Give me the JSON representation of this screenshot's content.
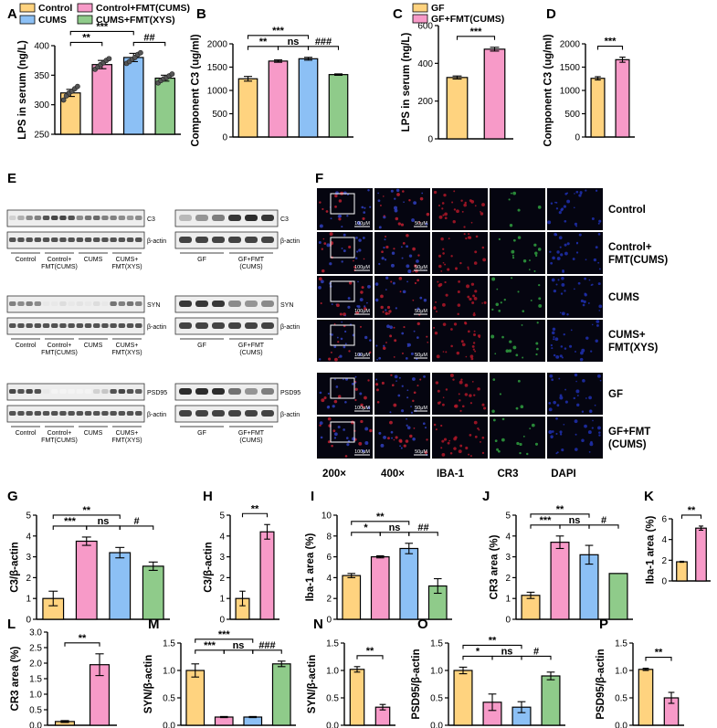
{
  "colors": {
    "control": "#FFD37F",
    "control_fmt": "#F79AC8",
    "cums": "#8CC0F5",
    "cums_fmt": "#8FCB8A"
  },
  "legend_A": [
    "Control",
    "Control+FMT(CUMS)",
    "CUMS",
    "CUMS+FMT(XYS)"
  ],
  "legend_C": [
    "GF",
    "GF+FMT(CUMS)"
  ],
  "chart_data": [
    {
      "id": "A",
      "type": "bar",
      "ylabel": "LPS in serum (ng/L)",
      "ylim": [
        250,
        400
      ],
      "yticks": [
        "250",
        "300",
        "350",
        "400"
      ],
      "categories": [
        "Control",
        "Control+FMT(CUMS)",
        "CUMS",
        "CUMS+FMT(XYS)"
      ],
      "values": [
        320,
        368,
        380,
        345
      ],
      "errors": [
        6,
        7,
        7,
        5
      ],
      "points": [
        [
          308,
          315,
          320,
          323,
          327,
          331
        ],
        [
          360,
          364,
          368,
          371,
          375,
          378
        ],
        [
          370,
          373,
          377,
          380,
          385,
          388
        ],
        [
          337,
          341,
          344,
          346,
          349,
          352
        ]
      ],
      "sig": [
        {
          "a": 0,
          "b": 1,
          "text": "**"
        },
        {
          "a": 0,
          "b": 2,
          "text": "***"
        },
        {
          "a": 2,
          "b": 3,
          "text": "##"
        }
      ]
    },
    {
      "id": "B",
      "type": "bar",
      "ylabel": "Component C3 (ug/ml)",
      "ylim": [
        0,
        2000
      ],
      "yticks": [
        "0",
        "500",
        "1000",
        "1500",
        "2000"
      ],
      "categories": [
        "Control",
        "Control+FMT(CUMS)",
        "CUMS",
        "CUMS+FMT(XYS)"
      ],
      "values": [
        1250,
        1630,
        1680,
        1340
      ],
      "errors": [
        50,
        25,
        30,
        15
      ],
      "sig": [
        {
          "a": 0,
          "b": 1,
          "text": "**"
        },
        {
          "a": 0,
          "b": 2,
          "text": "***"
        },
        {
          "a": 1,
          "b": 2,
          "text": "ns"
        },
        {
          "a": 2,
          "b": 3,
          "text": "###"
        }
      ]
    },
    {
      "id": "C",
      "type": "bar",
      "ylabel": "LPS in serum (ng/L)",
      "ylim": [
        0,
        600
      ],
      "yticks": [
        "0",
        "200",
        "400",
        "600"
      ],
      "categories": [
        "GF",
        "GF+FMT(CUMS)"
      ],
      "values": [
        325,
        475
      ],
      "errors": [
        8,
        10
      ],
      "sig": [
        {
          "a": 0,
          "b": 1,
          "text": "***"
        }
      ]
    },
    {
      "id": "D",
      "type": "bar",
      "ylabel": "Component C3 (ug/ml)",
      "ylim": [
        0,
        2000
      ],
      "yticks": [
        "0",
        "500",
        "1000",
        "1500",
        "2000"
      ],
      "categories": [
        "GF",
        "GF+FMT(CUMS)"
      ],
      "values": [
        1260,
        1660
      ],
      "errors": [
        35,
        55
      ],
      "sig": [
        {
          "a": 0,
          "b": 1,
          "text": "***"
        }
      ]
    },
    {
      "id": "G",
      "type": "bar",
      "ylabel": "C3/β-actin",
      "ylim": [
        0,
        5
      ],
      "yticks": [
        "0",
        "1",
        "2",
        "3",
        "4",
        "5"
      ],
      "categories": [
        "Control",
        "Control+FMT(CUMS)",
        "CUMS",
        "CUMS+FMT(XYS)"
      ],
      "values": [
        1.0,
        3.75,
        3.2,
        2.55
      ],
      "errors": [
        0.35,
        0.2,
        0.25,
        0.2
      ],
      "sig": [
        {
          "a": 0,
          "b": 1,
          "text": "***"
        },
        {
          "a": 0,
          "b": 2,
          "text": "**"
        },
        {
          "a": 1,
          "b": 2,
          "text": "ns"
        },
        {
          "a": 2,
          "b": 3,
          "text": "#"
        }
      ]
    },
    {
      "id": "H",
      "type": "bar",
      "ylabel": "C3/β-actin",
      "ylim": [
        0,
        5
      ],
      "yticks": [
        "0",
        "1",
        "2",
        "3",
        "4",
        "5"
      ],
      "categories": [
        "GF",
        "GF+FMT(CUMS)"
      ],
      "values": [
        1.0,
        4.2
      ],
      "errors": [
        0.35,
        0.35
      ],
      "sig": [
        {
          "a": 0,
          "b": 1,
          "text": "**"
        }
      ]
    },
    {
      "id": "I",
      "type": "bar",
      "ylabel": "Iba-1 area (%)",
      "ylim": [
        0,
        10
      ],
      "yticks": [
        "0",
        "2",
        "4",
        "6",
        "8",
        "10"
      ],
      "categories": [
        "Control",
        "Control+FMT(CUMS)",
        "CUMS",
        "CUMS+FMT(XYS)"
      ],
      "values": [
        4.2,
        6.0,
        6.8,
        3.2
      ],
      "errors": [
        0.2,
        0.1,
        0.5,
        0.7
      ],
      "sig": [
        {
          "a": 0,
          "b": 1,
          "text": "*"
        },
        {
          "a": 0,
          "b": 2,
          "text": "**"
        },
        {
          "a": 1,
          "b": 2,
          "text": "ns"
        },
        {
          "a": 2,
          "b": 3,
          "text": "##"
        }
      ]
    },
    {
      "id": "J",
      "type": "bar",
      "ylabel": "CR3 area (%)",
      "ylim": [
        0,
        5
      ],
      "yticks": [
        "0",
        "1",
        "2",
        "3",
        "4",
        "5"
      ],
      "categories": [
        "Control",
        "Control+FMT(CUMS)",
        "CUMS",
        "CUMS+FMT(XYS)"
      ],
      "values": [
        1.15,
        3.7,
        3.1,
        2.2
      ],
      "errors": [
        0.15,
        0.3,
        0.45,
        0
      ],
      "sig": [
        {
          "a": 0,
          "b": 1,
          "text": "***"
        },
        {
          "a": 0,
          "b": 2,
          "text": "**"
        },
        {
          "a": 1,
          "b": 2,
          "text": "ns"
        },
        {
          "a": 2,
          "b": 3,
          "text": "#"
        }
      ]
    },
    {
      "id": "K",
      "type": "bar",
      "ylabel": "Iba-1 area (%)",
      "ylim": [
        0,
        6
      ],
      "yticks": [
        "0",
        "2",
        "4",
        "6"
      ],
      "categories": [
        "GF",
        "GF+FMT(CUMS)"
      ],
      "values": [
        1.85,
        5.1
      ],
      "errors": [
        0.05,
        0.2
      ],
      "sig": [
        {
          "a": 0,
          "b": 1,
          "text": "**"
        }
      ]
    },
    {
      "id": "L",
      "type": "bar",
      "ylabel": "CR3 area (%)",
      "ylim": [
        0,
        3
      ],
      "yticks": [
        "0.0",
        "0.5",
        "1.0",
        "1.5",
        "2.0",
        "2.5",
        "3.0"
      ],
      "categories": [
        "GF",
        "GF+FMT(CUMS)"
      ],
      "values": [
        0.12,
        1.95
      ],
      "errors": [
        0.03,
        0.35
      ],
      "sig": [
        {
          "a": 0,
          "b": 1,
          "text": "**"
        }
      ]
    },
    {
      "id": "M",
      "type": "bar",
      "ylabel": "SYN/β-actin",
      "ylim": [
        0,
        1.5
      ],
      "yticks": [
        "0.0",
        "0.5",
        "1.0",
        "1.5"
      ],
      "categories": [
        "Control",
        "Control+FMT(CUMS)",
        "CUMS",
        "CUMS+FMT(XYS)"
      ],
      "values": [
        1.0,
        0.15,
        0.15,
        1.12
      ],
      "errors": [
        0.12,
        0.01,
        0.01,
        0.05
      ],
      "sig": [
        {
          "a": 0,
          "b": 1,
          "text": "***"
        },
        {
          "a": 0,
          "b": 2,
          "text": "***"
        },
        {
          "a": 1,
          "b": 2,
          "text": "ns"
        },
        {
          "a": 2,
          "b": 3,
          "text": "###"
        }
      ]
    },
    {
      "id": "N",
      "type": "bar",
      "ylabel": "SYN/β-actin",
      "ylim": [
        0,
        1.5
      ],
      "yticks": [
        "0.0",
        "0.5",
        "1.0",
        "1.5"
      ],
      "categories": [
        "GF",
        "GF+FMT(CUMS)"
      ],
      "values": [
        1.02,
        0.33
      ],
      "errors": [
        0.05,
        0.05
      ],
      "sig": [
        {
          "a": 0,
          "b": 1,
          "text": "**"
        }
      ]
    },
    {
      "id": "O",
      "type": "bar",
      "ylabel": "PSD95/β-actin",
      "ylim": [
        0,
        1.5
      ],
      "yticks": [
        "0.0",
        "0.5",
        "1.0",
        "1.5"
      ],
      "categories": [
        "Control",
        "Control+FMT(CUMS)",
        "CUMS",
        "CUMS+FMT(XYS)"
      ],
      "values": [
        1.0,
        0.42,
        0.33,
        0.9
      ],
      "errors": [
        0.06,
        0.15,
        0.1,
        0.07
      ],
      "sig": [
        {
          "a": 0,
          "b": 1,
          "text": "*"
        },
        {
          "a": 0,
          "b": 2,
          "text": "**"
        },
        {
          "a": 1,
          "b": 2,
          "text": "ns"
        },
        {
          "a": 2,
          "b": 3,
          "text": "#"
        }
      ]
    },
    {
      "id": "P",
      "type": "bar",
      "ylabel": "PSD95/β-actin",
      "ylim": [
        0,
        1.5
      ],
      "yticks": [
        "0.0",
        "0.5",
        "1.0",
        "1.5"
      ],
      "categories": [
        "GF",
        "GF+FMT(CUMS)"
      ],
      "values": [
        1.02,
        0.5
      ],
      "errors": [
        0.02,
        0.1
      ],
      "sig": [
        {
          "a": 0,
          "b": 1,
          "text": "**"
        }
      ]
    }
  ],
  "western": {
    "left_rows": [
      {
        "protein": "C3",
        "groups": [
          "Control",
          "Control+\nFMT(CUMS)",
          "CUMS",
          "CUMS+\nFMT(XYS)"
        ]
      },
      {
        "protein": "SYN",
        "groups": [
          "Control",
          "Control+\nFMT(CUMS)",
          "CUMS",
          "CUMS+\nFMT(XYS)"
        ]
      },
      {
        "protein": "PSD95",
        "groups": [
          "Control",
          "Control+\nFMT(CUMS)",
          "CUMS",
          "CUMS+\nFMT(XYS)"
        ]
      }
    ],
    "right_groups": [
      "GF",
      "GF+FMT\n(CUMS)"
    ],
    "actin": "β-actin"
  },
  "if_panel": {
    "rows": [
      "Control",
      "Control+\nFMT(CUMS)",
      "CUMS",
      "CUMS+\nFMT(XYS)",
      "GF",
      "GF+FMT\n(CUMS)"
    ],
    "cols": [
      "200×",
      "400×",
      "IBA-1",
      "CR3",
      "DAPI"
    ],
    "scale_200": "100μM",
    "scale_400": "50μM"
  }
}
